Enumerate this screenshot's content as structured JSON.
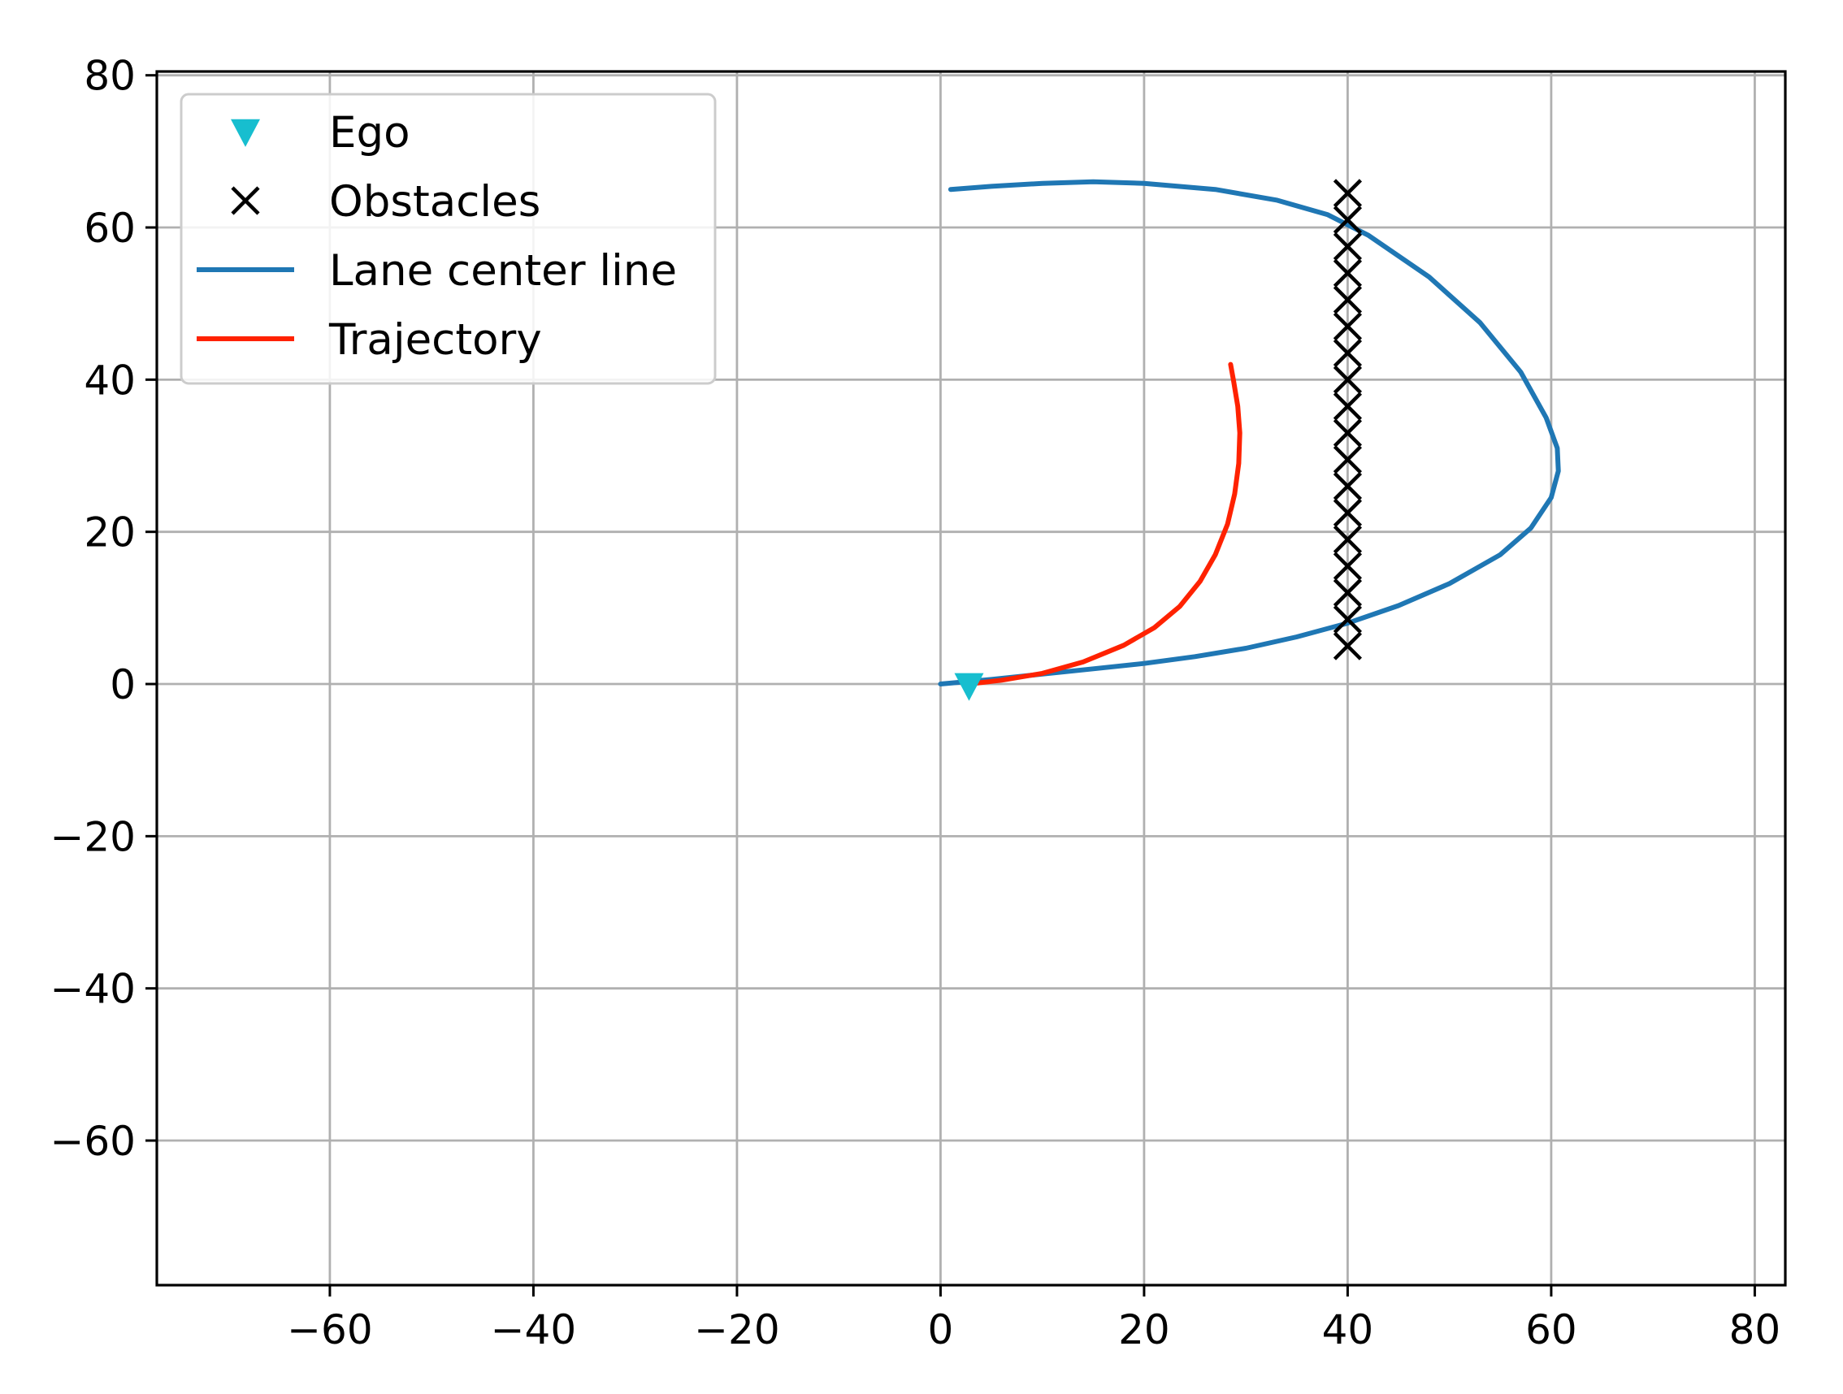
{
  "chart_data": {
    "type": "scatter",
    "title": "",
    "xlabel": "",
    "ylabel": "",
    "xlim": [
      -77,
      83
    ],
    "ylim": [
      -79,
      80.5
    ],
    "xticks": [
      -60,
      -40,
      -20,
      0,
      20,
      40,
      60,
      80
    ],
    "yticks": [
      -60,
      -40,
      -20,
      0,
      20,
      40,
      60,
      80
    ],
    "xtick_labels": [
      "−60",
      "−40",
      "−20",
      "0",
      "20",
      "40",
      "60",
      "80"
    ],
    "ytick_labels": [
      "−60",
      "−40",
      "−20",
      "0",
      "20",
      "40",
      "60",
      "80"
    ],
    "grid": true,
    "legend_position": "upper left",
    "colors": {
      "ego": "#17becf",
      "obstacles": "#000000",
      "lane": "#1f77b4",
      "trajectory": "#ff2200",
      "grid": "#b0b0b0"
    },
    "series": [
      {
        "name": "Ego",
        "kind": "marker-triangle-down",
        "points": [
          [
            2.8,
            -0.2
          ]
        ]
      },
      {
        "name": "Obstacles",
        "kind": "marker-x",
        "points": [
          [
            40,
            5
          ],
          [
            40,
            8.5
          ],
          [
            40,
            12
          ],
          [
            40,
            15.5
          ],
          [
            40,
            19
          ],
          [
            40,
            22.5
          ],
          [
            40,
            26
          ],
          [
            40,
            29.5
          ],
          [
            40,
            33
          ],
          [
            40,
            36.5
          ],
          [
            40,
            40
          ],
          [
            40,
            43.5
          ],
          [
            40,
            47
          ],
          [
            40,
            50.5
          ],
          [
            40,
            54
          ],
          [
            40,
            57.5
          ],
          [
            40,
            61
          ],
          [
            40,
            64.5
          ]
        ]
      },
      {
        "name": "Lane center line",
        "kind": "line",
        "points": [
          [
            0,
            0
          ],
          [
            5,
            0.6
          ],
          [
            10,
            1.3
          ],
          [
            15,
            2
          ],
          [
            20,
            2.7
          ],
          [
            25,
            3.6
          ],
          [
            30,
            4.7
          ],
          [
            35,
            6.2
          ],
          [
            40,
            8
          ],
          [
            45,
            10.3
          ],
          [
            50,
            13.2
          ],
          [
            55,
            17
          ],
          [
            58,
            20.5
          ],
          [
            60,
            24.5
          ],
          [
            60.7,
            28
          ],
          [
            60.6,
            31
          ],
          [
            59.5,
            35
          ],
          [
            57,
            41
          ],
          [
            53,
            47.5
          ],
          [
            48,
            53.5
          ],
          [
            42,
            59
          ],
          [
            38,
            61.7
          ],
          [
            33,
            63.6
          ],
          [
            27,
            65
          ],
          [
            20,
            65.8
          ],
          [
            15,
            66
          ],
          [
            10,
            65.8
          ],
          [
            5,
            65.4
          ],
          [
            1,
            65
          ]
        ]
      },
      {
        "name": "Trajectory",
        "kind": "line",
        "points": [
          [
            2.8,
            0
          ],
          [
            6,
            0.5
          ],
          [
            10,
            1.4
          ],
          [
            14,
            2.9
          ],
          [
            18,
            5.1
          ],
          [
            21,
            7.4
          ],
          [
            23.5,
            10.2
          ],
          [
            25.5,
            13.5
          ],
          [
            27,
            17
          ],
          [
            28.2,
            21
          ],
          [
            28.9,
            25
          ],
          [
            29.3,
            29
          ],
          [
            29.4,
            33
          ],
          [
            29.2,
            36.5
          ],
          [
            28.8,
            39.8
          ],
          [
            28.5,
            42
          ]
        ]
      }
    ]
  }
}
